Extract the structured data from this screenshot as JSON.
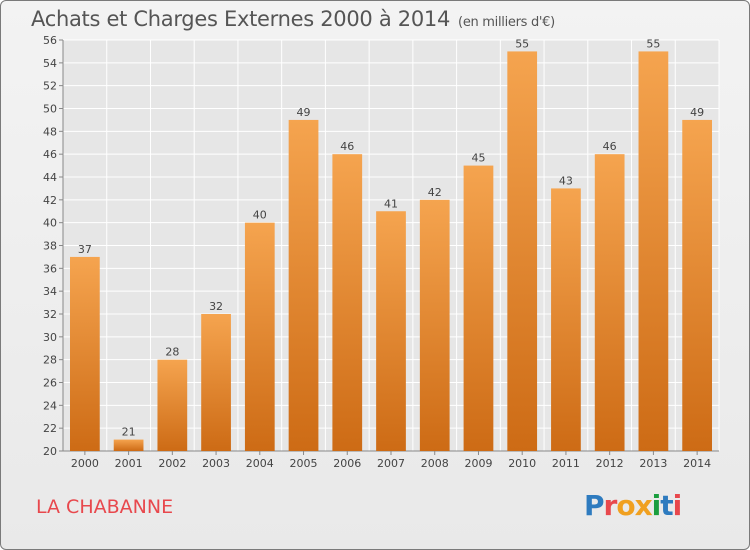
{
  "header": {
    "title": "Achats et Charges Externes 2000 à 2014",
    "unit": "(en milliers d'€)"
  },
  "footer": {
    "place": "LA CHABANNE",
    "logo_text": "Proxiti"
  },
  "colors": {
    "bar_top": "#f5a44f",
    "bar_bottom": "#cd6b15",
    "grid": "#ffffff",
    "place_text": "#e8484d",
    "logo_letters": [
      "#2e7bbf",
      "#e8484d",
      "#f0a020",
      "#f0a020",
      "#1a9e3e",
      "#2e7bbf",
      "#e8484d"
    ]
  },
  "chart_data": {
    "type": "bar",
    "title": "Achats et Charges Externes 2000 à 2014",
    "subtitle": "(en milliers d'€)",
    "categories": [
      "2000",
      "2001",
      "2002",
      "2003",
      "2004",
      "2005",
      "2006",
      "2007",
      "2008",
      "2009",
      "2010",
      "2011",
      "2012",
      "2013",
      "2014"
    ],
    "values": [
      37,
      21,
      28,
      32,
      40,
      49,
      46,
      41,
      42,
      45,
      55,
      43,
      46,
      55,
      49
    ],
    "ylim": [
      20,
      56
    ],
    "yticks": [
      20,
      22,
      24,
      26,
      28,
      30,
      32,
      34,
      36,
      38,
      40,
      42,
      44,
      46,
      48,
      50,
      52,
      54,
      56
    ],
    "grid": true,
    "data_labels": true
  }
}
